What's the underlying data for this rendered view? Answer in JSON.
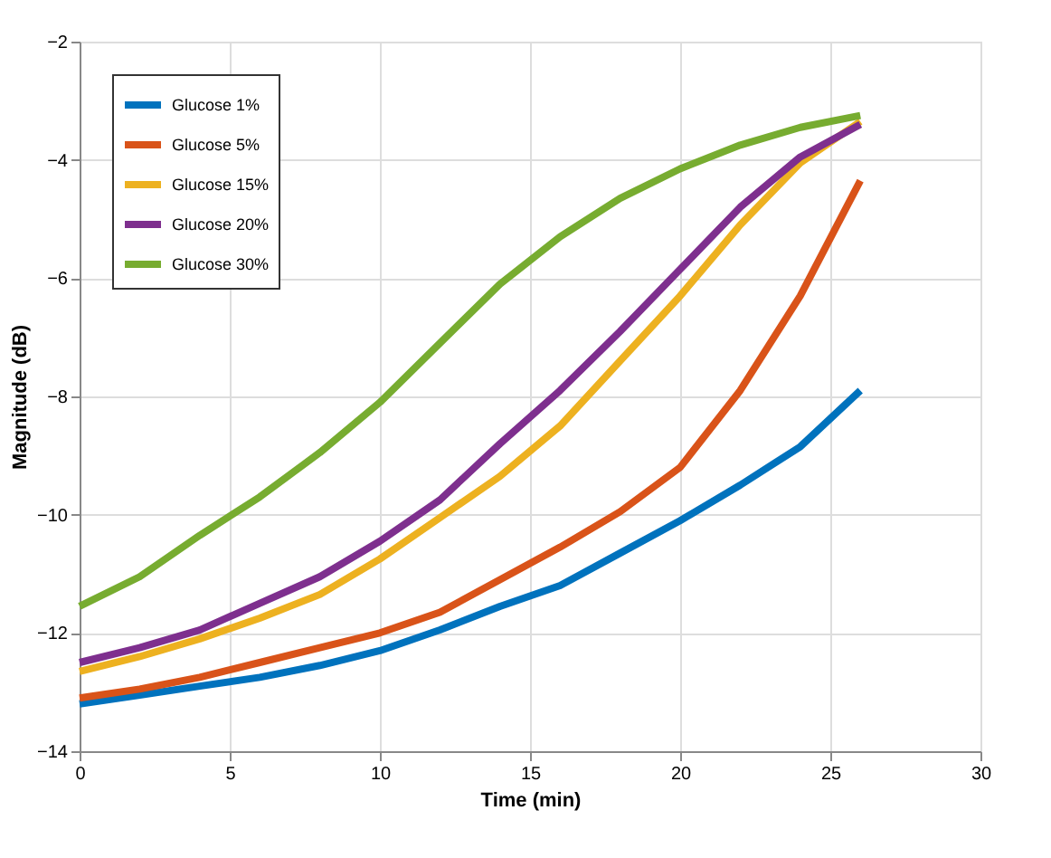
{
  "chart_data": {
    "type": "line",
    "xlabel": "Time (min)",
    "ylabel": "Magnitude (dB)",
    "x": [
      0,
      2,
      4,
      6,
      8,
      10,
      12,
      14,
      16,
      18,
      20,
      22,
      24,
      26
    ],
    "series": [
      {
        "name": "Glucose 1%",
        "color": "#0072bd",
        "values": [
          -13.2,
          -13.05,
          -12.9,
          -12.75,
          -12.55,
          -12.3,
          -11.95,
          -11.55,
          -11.2,
          -10.65,
          -10.1,
          -9.5,
          -8.85,
          -7.9
        ]
      },
      {
        "name": "Glucose 5%",
        "color": "#d95319",
        "values": [
          -13.1,
          -12.95,
          -12.75,
          -12.5,
          -12.25,
          -12.0,
          -11.65,
          -11.1,
          -10.55,
          -9.95,
          -9.2,
          -7.9,
          -6.3,
          -4.35
        ]
      },
      {
        "name": "Glucose 15%",
        "color": "#edb120",
        "values": [
          -12.65,
          -12.4,
          -12.1,
          -11.75,
          -11.35,
          -10.75,
          -10.05,
          -9.35,
          -8.5,
          -7.4,
          -6.3,
          -5.1,
          -4.05,
          -3.35
        ]
      },
      {
        "name": "Glucose 20%",
        "color": "#7e2f8e",
        "values": [
          -12.5,
          -12.25,
          -11.95,
          -11.5,
          -11.05,
          -10.45,
          -9.75,
          -8.8,
          -7.9,
          -6.9,
          -5.85,
          -4.8,
          -3.95,
          -3.4
        ]
      },
      {
        "name": "Glucose 30%",
        "color": "#77ac30",
        "values": [
          -11.55,
          -11.05,
          -10.35,
          -9.7,
          -8.95,
          -8.1,
          -7.1,
          -6.1,
          -5.3,
          -4.65,
          -4.15,
          -3.75,
          -3.45,
          -3.25
        ]
      }
    ],
    "xlim": [
      0,
      30
    ],
    "xticks": [
      0,
      5,
      10,
      15,
      20,
      25,
      30
    ],
    "ylim": [
      -14,
      -2
    ],
    "yticks": [
      -14,
      -12,
      -10,
      -8,
      -6,
      -4,
      -2
    ],
    "grid": true,
    "legend": "top left",
    "marker": "none",
    "line_style": "solid"
  }
}
